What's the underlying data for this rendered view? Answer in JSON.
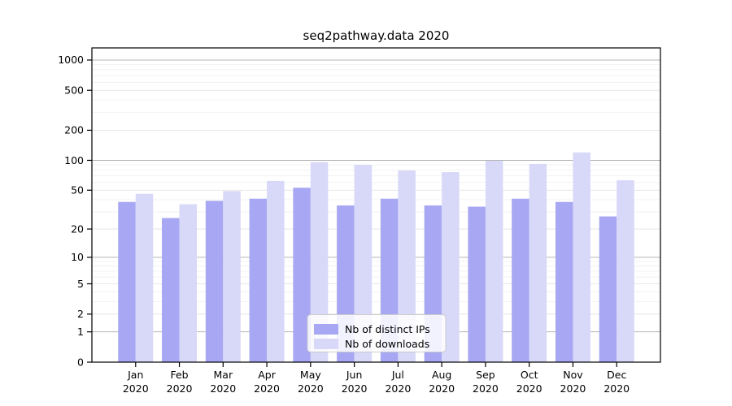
{
  "figure": {
    "title": "seq2pathway.data 2020"
  },
  "chart_data": {
    "type": "bar",
    "title": "seq2pathway.data 2020",
    "categories": [
      "Jan",
      "Feb",
      "Mar",
      "Apr",
      "May",
      "Jun",
      "Jul",
      "Aug",
      "Sep",
      "Oct",
      "Nov",
      "Dec"
    ],
    "category_year": "2020",
    "series": [
      {
        "name": "Nb of distinct IPs",
        "color": "#a7a7f3",
        "values": [
          38,
          26,
          39,
          41,
          53,
          35,
          41,
          35,
          34,
          41,
          38,
          27
        ]
      },
      {
        "name": "Nb of downloads",
        "color": "#d8d8f8",
        "values": [
          46,
          36,
          49,
          62,
          96,
          90,
          79,
          76,
          99,
          92,
          120,
          63
        ]
      }
    ],
    "xlabel": "",
    "ylabel": "",
    "yscale": "log10(value+1)",
    "ylim": [
      0,
      1320
    ],
    "yticks": [
      0,
      1,
      2,
      5,
      10,
      20,
      50,
      100,
      200,
      500,
      1000
    ],
    "power_ticks": [
      1,
      10,
      100,
      1000
    ],
    "minor_gridlines": [
      3,
      4,
      6,
      7,
      8,
      9,
      30,
      40,
      60,
      70,
      80,
      90,
      300,
      400,
      600,
      700,
      800,
      900
    ],
    "grid": true,
    "legend": {
      "position": "lower center",
      "entries": [
        "Nb of distinct IPs",
        "Nb of downloads"
      ]
    }
  },
  "colors": {
    "background": "#ffffff",
    "text": "#000000",
    "spine": "#000000",
    "grid_power": "#b4b4b4",
    "grid_major": "#e0e0e0",
    "grid_minor": "#efefef",
    "legend_border": "#cccccc",
    "legend_background": "#ffffff"
  }
}
